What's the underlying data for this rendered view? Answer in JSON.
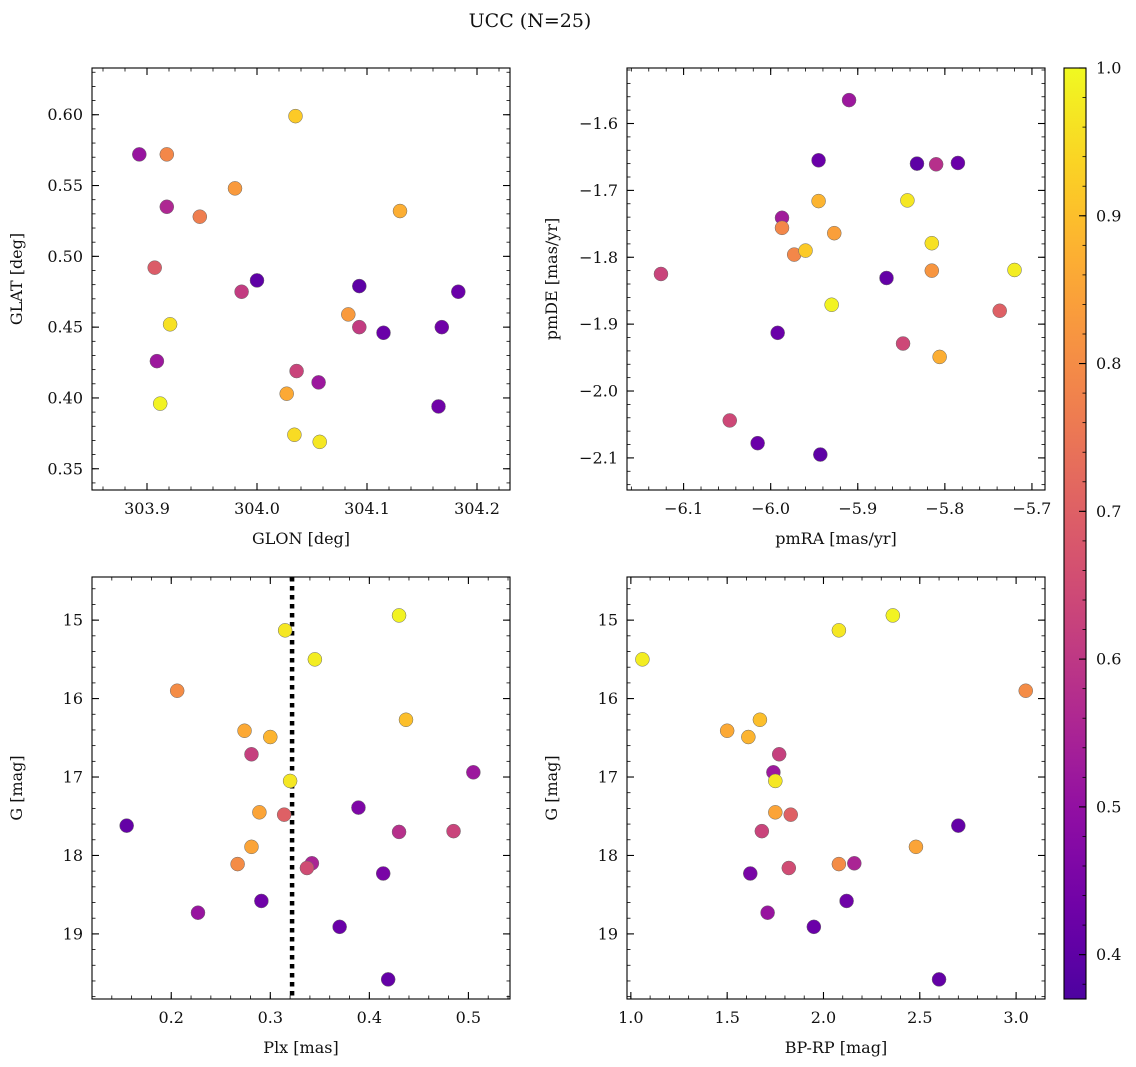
{
  "title": "UCC (N=25)",
  "chart_data": [
    {
      "id": "sky",
      "type": "scatter",
      "xlabel": "GLON [deg]",
      "ylabel": "GLAT [deg]",
      "xlim": [
        303.85,
        304.23
      ],
      "ylim": [
        0.335,
        0.633
      ],
      "xticks": [
        303.9,
        304.0,
        304.1,
        304.2
      ],
      "xtick_labels": [
        "303.9",
        "304.0",
        "304.1",
        "304.2"
      ],
      "yticks": [
        0.35,
        0.4,
        0.45,
        0.5,
        0.55,
        0.6
      ],
      "ytick_labels": [
        "0.35",
        "0.40",
        "0.45",
        "0.50",
        "0.55",
        "0.60"
      ],
      "x_minor_step": 0.02,
      "y_minor_step": 0.01,
      "y_inverted": false,
      "points": [
        {
          "x": 303.893,
          "y": 0.572,
          "c": 0.51
        },
        {
          "x": 303.918,
          "y": 0.572,
          "c": 0.79
        },
        {
          "x": 303.918,
          "y": 0.535,
          "c": 0.56
        },
        {
          "x": 303.948,
          "y": 0.528,
          "c": 0.77
        },
        {
          "x": 303.98,
          "y": 0.548,
          "c": 0.83
        },
        {
          "x": 304.035,
          "y": 0.599,
          "c": 0.92
        },
        {
          "x": 304.13,
          "y": 0.532,
          "c": 0.87
        },
        {
          "x": 303.907,
          "y": 0.492,
          "c": 0.69
        },
        {
          "x": 303.986,
          "y": 0.475,
          "c": 0.61
        },
        {
          "x": 304.0,
          "y": 0.483,
          "c": 0.4
        },
        {
          "x": 304.093,
          "y": 0.479,
          "c": 0.4
        },
        {
          "x": 304.183,
          "y": 0.475,
          "c": 0.42
        },
        {
          "x": 303.921,
          "y": 0.452,
          "c": 0.96
        },
        {
          "x": 304.083,
          "y": 0.459,
          "c": 0.83
        },
        {
          "x": 304.093,
          "y": 0.45,
          "c": 0.61
        },
        {
          "x": 304.115,
          "y": 0.446,
          "c": 0.42
        },
        {
          "x": 304.168,
          "y": 0.45,
          "c": 0.43
        },
        {
          "x": 303.909,
          "y": 0.426,
          "c": 0.52
        },
        {
          "x": 304.036,
          "y": 0.419,
          "c": 0.63
        },
        {
          "x": 304.056,
          "y": 0.411,
          "c": 0.52
        },
        {
          "x": 304.027,
          "y": 0.403,
          "c": 0.86
        },
        {
          "x": 303.912,
          "y": 0.396,
          "c": 0.99
        },
        {
          "x": 304.165,
          "y": 0.394,
          "c": 0.43
        },
        {
          "x": 304.034,
          "y": 0.374,
          "c": 0.95
        },
        {
          "x": 304.057,
          "y": 0.369,
          "c": 0.97
        }
      ]
    },
    {
      "id": "pm",
      "type": "scatter",
      "xlabel": "pmRA [mas/yr]",
      "ylabel": "pmDE [mas/yr]",
      "xlim": [
        -6.165,
        -5.685
      ],
      "ylim": [
        -2.148,
        -1.517
      ],
      "xticks": [
        -6.1,
        -6.0,
        -5.9,
        -5.8,
        -5.7
      ],
      "xtick_labels": [
        "−6.1",
        "−6.0",
        "−5.9",
        "−5.8",
        "−5.7"
      ],
      "yticks": [
        -2.1,
        -2.0,
        -1.9,
        -1.8,
        -1.7,
        -1.6
      ],
      "ytick_labels": [
        "−2.1",
        "−2.0",
        "−1.9",
        "−1.8",
        "−1.7",
        "−1.6"
      ],
      "x_minor_step": 0.02,
      "y_minor_step": 0.02,
      "y_inverted": false,
      "points": [
        {
          "x": -5.91,
          "y": -1.565,
          "c": 0.52
        },
        {
          "x": -5.945,
          "y": -1.655,
          "c": 0.42
        },
        {
          "x": -5.832,
          "y": -1.66,
          "c": 0.4
        },
        {
          "x": -5.81,
          "y": -1.661,
          "c": 0.58
        },
        {
          "x": -5.785,
          "y": -1.659,
          "c": 0.42
        },
        {
          "x": -5.987,
          "y": -1.741,
          "c": 0.53
        },
        {
          "x": -5.945,
          "y": -1.716,
          "c": 0.88
        },
        {
          "x": -5.843,
          "y": -1.715,
          "c": 0.97
        },
        {
          "x": -5.987,
          "y": -1.756,
          "c": 0.79
        },
        {
          "x": -5.927,
          "y": -1.764,
          "c": 0.84
        },
        {
          "x": -5.973,
          "y": -1.796,
          "c": 0.79
        },
        {
          "x": -5.96,
          "y": -1.79,
          "c": 0.92
        },
        {
          "x": -5.815,
          "y": -1.779,
          "c": 0.96
        },
        {
          "x": -5.815,
          "y": -1.82,
          "c": 0.82
        },
        {
          "x": -5.72,
          "y": -1.819,
          "c": 0.98
        },
        {
          "x": -6.126,
          "y": -1.825,
          "c": 0.63
        },
        {
          "x": -5.867,
          "y": -1.831,
          "c": 0.41
        },
        {
          "x": -5.93,
          "y": -1.871,
          "c": 0.99
        },
        {
          "x": -5.737,
          "y": -1.88,
          "c": 0.7
        },
        {
          "x": -5.992,
          "y": -1.913,
          "c": 0.42
        },
        {
          "x": -5.848,
          "y": -1.929,
          "c": 0.64
        },
        {
          "x": -5.806,
          "y": -1.949,
          "c": 0.87
        },
        {
          "x": -6.047,
          "y": -2.044,
          "c": 0.64
        },
        {
          "x": -6.015,
          "y": -2.078,
          "c": 0.42
        },
        {
          "x": -5.943,
          "y": -2.095,
          "c": 0.4
        }
      ]
    },
    {
      "id": "plx",
      "type": "scatter",
      "xlabel": "Plx [mas]",
      "ylabel": "G [mag]",
      "xlim": [
        0.12,
        0.542
      ],
      "ylim": [
        19.83,
        14.45
      ],
      "xticks": [
        0.2,
        0.3,
        0.4,
        0.5
      ],
      "xtick_labels": [
        "0.2",
        "0.3",
        "0.4",
        "0.5"
      ],
      "yticks": [
        15,
        16,
        17,
        18,
        19
      ],
      "ytick_labels": [
        "15",
        "16",
        "17",
        "18",
        "19"
      ],
      "x_minor_step": 0.02,
      "y_minor_step": 0.2,
      "y_inverted": true,
      "vline": 0.322,
      "points": [
        {
          "x": 0.43,
          "y": 14.94,
          "c": 0.99
        },
        {
          "x": 0.315,
          "y": 15.13,
          "c": 0.97
        },
        {
          "x": 0.345,
          "y": 15.5,
          "c": 0.98
        },
        {
          "x": 0.206,
          "y": 15.9,
          "c": 0.8
        },
        {
          "x": 0.437,
          "y": 16.27,
          "c": 0.9
        },
        {
          "x": 0.274,
          "y": 16.41,
          "c": 0.86
        },
        {
          "x": 0.3,
          "y": 16.49,
          "c": 0.88
        },
        {
          "x": 0.281,
          "y": 16.71,
          "c": 0.62
        },
        {
          "x": 0.505,
          "y": 16.94,
          "c": 0.52
        },
        {
          "x": 0.32,
          "y": 17.05,
          "c": 0.97
        },
        {
          "x": 0.155,
          "y": 17.62,
          "c": 0.41
        },
        {
          "x": 0.389,
          "y": 17.39,
          "c": 0.46
        },
        {
          "x": 0.289,
          "y": 17.45,
          "c": 0.85
        },
        {
          "x": 0.314,
          "y": 17.48,
          "c": 0.7
        },
        {
          "x": 0.43,
          "y": 17.7,
          "c": 0.58
        },
        {
          "x": 0.485,
          "y": 17.69,
          "c": 0.63
        },
        {
          "x": 0.281,
          "y": 17.89,
          "c": 0.85
        },
        {
          "x": 0.267,
          "y": 18.11,
          "c": 0.8
        },
        {
          "x": 0.342,
          "y": 18.1,
          "c": 0.55
        },
        {
          "x": 0.337,
          "y": 18.16,
          "c": 0.65
        },
        {
          "x": 0.414,
          "y": 18.23,
          "c": 0.45
        },
        {
          "x": 0.291,
          "y": 18.58,
          "c": 0.43
        },
        {
          "x": 0.227,
          "y": 18.73,
          "c": 0.51
        },
        {
          "x": 0.37,
          "y": 18.91,
          "c": 0.42
        },
        {
          "x": 0.419,
          "y": 19.58,
          "c": 0.41
        }
      ]
    },
    {
      "id": "cmd",
      "type": "scatter",
      "xlabel": "BP-RP [mag]",
      "ylabel": "G [mag]",
      "xlim": [
        0.98,
        3.15
      ],
      "ylim": [
        19.83,
        14.45
      ],
      "xticks": [
        1.0,
        1.5,
        2.0,
        2.5,
        3.0
      ],
      "xtick_labels": [
        "1.0",
        "1.5",
        "2.0",
        "2.5",
        "3.0"
      ],
      "yticks": [
        15,
        16,
        17,
        18,
        19
      ],
      "ytick_labels": [
        "15",
        "16",
        "17",
        "18",
        "19"
      ],
      "x_minor_step": 0.1,
      "y_minor_step": 0.2,
      "y_inverted": true,
      "points": [
        {
          "x": 2.36,
          "y": 14.94,
          "c": 0.99
        },
        {
          "x": 2.08,
          "y": 15.13,
          "c": 0.97
        },
        {
          "x": 1.06,
          "y": 15.5,
          "c": 0.98
        },
        {
          "x": 3.05,
          "y": 15.9,
          "c": 0.8
        },
        {
          "x": 1.67,
          "y": 16.27,
          "c": 0.9
        },
        {
          "x": 1.5,
          "y": 16.41,
          "c": 0.86
        },
        {
          "x": 1.61,
          "y": 16.49,
          "c": 0.88
        },
        {
          "x": 1.77,
          "y": 16.71,
          "c": 0.62
        },
        {
          "x": 1.74,
          "y": 16.94,
          "c": 0.52
        },
        {
          "x": 1.75,
          "y": 17.05,
          "c": 0.97
        },
        {
          "x": 2.7,
          "y": 17.62,
          "c": 0.41
        },
        {
          "x": 1.75,
          "y": 17.45,
          "c": 0.85
        },
        {
          "x": 1.83,
          "y": 17.48,
          "c": 0.7
        },
        {
          "x": 1.68,
          "y": 17.69,
          "c": 0.63
        },
        {
          "x": 2.48,
          "y": 17.89,
          "c": 0.85
        },
        {
          "x": 2.08,
          "y": 18.11,
          "c": 0.8
        },
        {
          "x": 2.16,
          "y": 18.1,
          "c": 0.55
        },
        {
          "x": 1.82,
          "y": 18.16,
          "c": 0.65
        },
        {
          "x": 1.62,
          "y": 18.23,
          "c": 0.45
        },
        {
          "x": 2.12,
          "y": 18.58,
          "c": 0.43
        },
        {
          "x": 1.71,
          "y": 18.73,
          "c": 0.51
        },
        {
          "x": 1.95,
          "y": 18.91,
          "c": 0.42
        },
        {
          "x": 2.6,
          "y": 19.58,
          "c": 0.41
        }
      ]
    }
  ],
  "colorbar": {
    "cmap": "plasma",
    "range": [
      0.37,
      1.0
    ],
    "ticks": [
      0.4,
      0.5,
      0.6,
      0.7,
      0.8,
      0.9,
      1.0
    ],
    "tick_labels": [
      "0.4",
      "0.5",
      "0.6",
      "0.7",
      "0.8",
      "0.9",
      "1.0"
    ],
    "minor_step": 0.02
  }
}
